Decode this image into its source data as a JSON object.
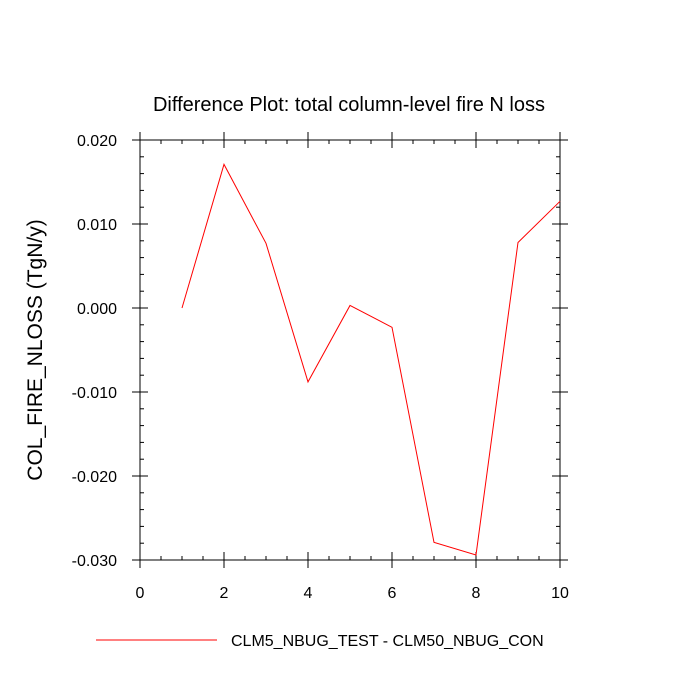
{
  "chart_data": {
    "type": "line",
    "title": "Difference Plot: total column-level fire N loss",
    "xlabel": "",
    "ylabel": "COL_FIRE_NLOSS  (TgN/y)",
    "xlim": [
      0,
      10
    ],
    "ylim": [
      -0.03,
      0.02
    ],
    "x_ticks": [
      0,
      2,
      4,
      6,
      8,
      10
    ],
    "x_tick_labels": [
      "0",
      "2",
      "4",
      "6",
      "8",
      "10"
    ],
    "y_ticks": [
      -0.03,
      -0.02,
      -0.01,
      0.0,
      0.01,
      0.02
    ],
    "y_tick_labels": [
      "-0.030",
      "-0.020",
      "-0.010",
      "0.000",
      "0.010",
      "0.020"
    ],
    "grid": false,
    "legend_position": "bottom",
    "series": [
      {
        "name": "CLM5_NBUG_TEST - CLM50_NBUG_CON",
        "color": "#ff0000",
        "x": [
          1,
          2,
          3,
          4,
          5,
          6,
          7,
          8,
          9,
          10
        ],
        "y": [
          0.0,
          0.0171,
          0.0077,
          -0.0088,
          0.0003,
          -0.0023,
          -0.0279,
          -0.0294,
          0.0078,
          0.0127
        ]
      }
    ]
  }
}
